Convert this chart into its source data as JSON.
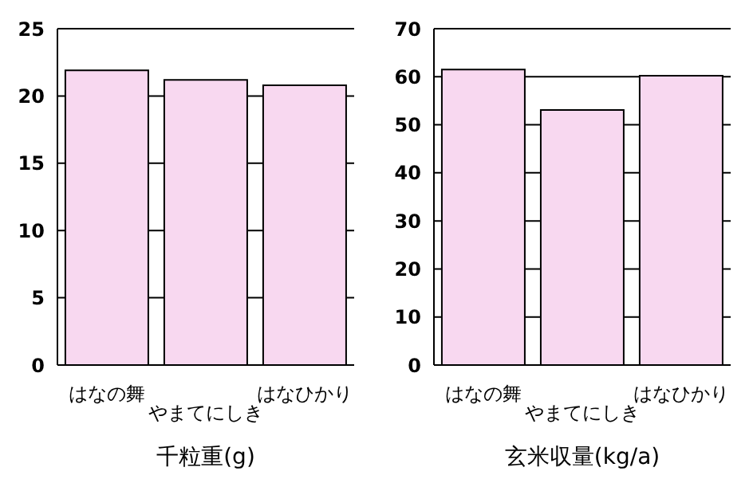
{
  "chart_data": [
    {
      "type": "bar",
      "xlabel": "千粒重(g)",
      "categories": [
        "はなの舞",
        "やまてにしき",
        "はなひかり"
      ],
      "values": [
        21.9,
        21.2,
        20.8
      ],
      "color": "#f8d8f0",
      "ylim": [
        0,
        25
      ],
      "yticks": [
        0,
        5,
        10,
        15,
        20,
        25
      ],
      "grid": "y"
    },
    {
      "type": "bar",
      "xlabel": "玄米収量(kg/a)",
      "categories": [
        "はなの舞",
        "やまてにしき",
        "はなひかり"
      ],
      "values": [
        61.5,
        53.1,
        60.2
      ],
      "color": "#f8d8f0",
      "ylim": [
        0,
        70
      ],
      "yticks": [
        0,
        10,
        20,
        30,
        40,
        50,
        60,
        70
      ],
      "grid": "y"
    }
  ]
}
